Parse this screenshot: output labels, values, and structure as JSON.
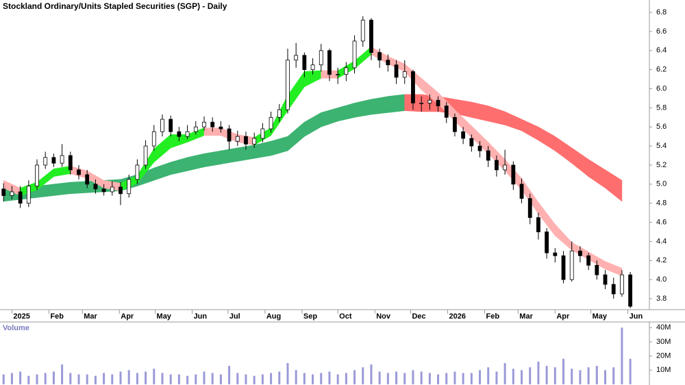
{
  "chart_data": {
    "type": "candlestick",
    "title": "Stockland Ordinary/Units Stapled Securities (SGP) - Daily",
    "x": [
      -7,
      0,
      7,
      14,
      21,
      28,
      35,
      42,
      49,
      56,
      63,
      70,
      77,
      84,
      91,
      98,
      105,
      112,
      119,
      126,
      133,
      140,
      147,
      154,
      161,
      168,
      175,
      182,
      189,
      196,
      203,
      210,
      217,
      224,
      231,
      238,
      245,
      252,
      259,
      266,
      273,
      280,
      287,
      294,
      301,
      308,
      315,
      322,
      329,
      336,
      343,
      350,
      357,
      364,
      371,
      378,
      385,
      392,
      399,
      406,
      413,
      420,
      427,
      434,
      441,
      448,
      455,
      462,
      469,
      476,
      483,
      490,
      497,
      504,
      511,
      518
    ],
    "open": [
      4.95,
      4.88,
      4.92,
      4.8,
      4.98,
      5.2,
      5.28,
      5.22,
      5.3,
      5.15,
      5.1,
      5.0,
      4.95,
      4.92,
      4.97,
      4.9,
      5.05,
      5.2,
      5.4,
      5.55,
      5.68,
      5.55,
      5.5,
      5.55,
      5.6,
      5.65,
      5.6,
      5.58,
      5.45,
      5.5,
      5.42,
      5.48,
      5.58,
      5.7,
      5.78,
      6.3,
      6.35,
      6.2,
      6.25,
      6.4,
      6.15,
      6.15,
      6.22,
      6.5,
      6.72,
      6.38,
      6.3,
      6.25,
      6.12,
      6.18,
      5.85,
      5.85,
      5.88,
      5.82,
      5.7,
      5.55,
      5.48,
      5.4,
      5.35,
      5.25,
      5.15,
      5.2,
      5.0,
      4.85,
      4.65,
      4.5,
      4.28,
      4.25,
      4.0,
      4.3,
      4.25,
      4.15,
      4.05,
      3.95,
      3.85,
      4.05
    ],
    "high": [
      5.01,
      4.98,
      4.98,
      5.04,
      5.26,
      5.34,
      5.32,
      5.42,
      5.34,
      5.2,
      5.15,
      5.05,
      5.0,
      5.03,
      5.02,
      5.1,
      5.26,
      5.46,
      5.62,
      5.73,
      5.72,
      5.6,
      5.62,
      5.66,
      5.71,
      5.7,
      5.66,
      5.62,
      5.56,
      5.55,
      5.54,
      5.64,
      5.76,
      5.84,
      6.42,
      6.48,
      6.38,
      6.32,
      6.47,
      6.42,
      6.22,
      6.28,
      6.56,
      6.76,
      6.74,
      6.42,
      6.36,
      6.3,
      6.3,
      6.2,
      5.92,
      5.94,
      5.92,
      5.86,
      5.74,
      5.6,
      5.52,
      5.45,
      5.4,
      5.3,
      5.36,
      5.24,
      5.06,
      4.9,
      4.7,
      4.54,
      4.33,
      4.3,
      4.4,
      4.35,
      4.28,
      4.2,
      4.1,
      4.02,
      4.1,
      4.08
    ],
    "low": [
      4.82,
      4.84,
      4.75,
      4.76,
      4.94,
      5.16,
      5.18,
      5.18,
      5.1,
      5.05,
      4.96,
      4.9,
      4.88,
      4.88,
      4.78,
      4.86,
      5.0,
      5.16,
      5.35,
      5.5,
      5.5,
      5.45,
      5.47,
      5.52,
      5.56,
      5.55,
      5.54,
      5.36,
      5.4,
      5.36,
      5.38,
      5.44,
      5.54,
      5.65,
      5.74,
      6.22,
      6.12,
      6.15,
      6.18,
      6.08,
      6.05,
      6.08,
      6.16,
      6.44,
      6.3,
      6.22,
      6.18,
      6.05,
      6.05,
      5.78,
      5.76,
      5.78,
      5.76,
      5.64,
      5.5,
      5.42,
      5.34,
      5.28,
      5.18,
      5.08,
      5.1,
      4.94,
      4.8,
      4.58,
      4.42,
      4.22,
      4.18,
      3.96,
      3.98,
      4.18,
      4.1,
      4.0,
      3.9,
      3.8,
      3.82,
      3.7
    ],
    "close": [
      4.88,
      4.92,
      4.8,
      4.98,
      5.2,
      5.28,
      5.22,
      5.3,
      5.15,
      5.1,
      5.0,
      4.95,
      4.92,
      4.97,
      4.9,
      5.05,
      5.2,
      5.4,
      5.55,
      5.68,
      5.55,
      5.5,
      5.55,
      5.6,
      5.65,
      5.6,
      5.58,
      5.45,
      5.5,
      5.42,
      5.48,
      5.58,
      5.7,
      5.78,
      6.3,
      6.35,
      6.2,
      6.25,
      6.4,
      6.15,
      6.15,
      6.22,
      6.5,
      6.72,
      6.38,
      6.3,
      6.25,
      6.12,
      6.18,
      5.85,
      5.85,
      5.88,
      5.82,
      5.7,
      5.55,
      5.48,
      5.4,
      5.35,
      5.25,
      5.15,
      5.2,
      5.0,
      4.85,
      4.65,
      4.5,
      4.28,
      4.25,
      4.0,
      4.3,
      4.25,
      4.15,
      4.05,
      3.95,
      3.85,
      4.05,
      3.72
    ],
    "up_color": "#ffffff",
    "down_color": "#000000",
    "xlim": [
      -10,
      534
    ],
    "xticks": [
      {
        "value": 0,
        "label": "2025"
      },
      {
        "value": 31,
        "label": "Feb"
      },
      {
        "value": 59,
        "label": "Mar"
      },
      {
        "value": 90,
        "label": "Apr"
      },
      {
        "value": 120,
        "label": "May"
      },
      {
        "value": 151,
        "label": "Jun"
      },
      {
        "value": 181,
        "label": "Jul"
      },
      {
        "value": 212,
        "label": "Aug"
      },
      {
        "value": 243,
        "label": "Sep"
      },
      {
        "value": 273,
        "label": "Oct"
      },
      {
        "value": 304,
        "label": "Nov"
      },
      {
        "value": 334,
        "label": "Dec"
      },
      {
        "value": 365,
        "label": "2026"
      },
      {
        "value": 396,
        "label": "Feb"
      },
      {
        "value": 424,
        "label": "Mar"
      },
      {
        "value": 455,
        "label": "Apr"
      },
      {
        "value": 485,
        "label": "May"
      },
      {
        "value": 516,
        "label": "Jun"
      }
    ],
    "ylim": [
      3.685,
      6.93
    ],
    "yticks": [
      3.8,
      {
        "value": 4,
        "label": "4.0"
      },
      4.2,
      4.4,
      4.6,
      4.8,
      {
        "value": 5,
        "label": "5.0"
      },
      5.2,
      5.4,
      5.6,
      5.8,
      {
        "value": 6,
        "label": "6.0"
      },
      6.2,
      6.4,
      6.6,
      6.8
    ],
    "bands": [
      {
        "x": [
          -7,
          7,
          21,
          35,
          49,
          63,
          77,
          91,
          105,
          119,
          133,
          147,
          161,
          175,
          189,
          203,
          217,
          231,
          245,
          259,
          273,
          287,
          301,
          315,
          329,
          343,
          357,
          371,
          385,
          399,
          413,
          427,
          441,
          455,
          469,
          483,
          497,
          511
        ],
        "upper": [
          4.94,
          4.96,
          4.98,
          5.0,
          5.02,
          5.03,
          5.04,
          5.05,
          5.1,
          5.17,
          5.23,
          5.28,
          5.32,
          5.35,
          5.38,
          5.41,
          5.45,
          5.5,
          5.65,
          5.75,
          5.8,
          5.85,
          5.89,
          5.92,
          5.94,
          5.94,
          5.92,
          5.89,
          5.86,
          5.82,
          5.76,
          5.68,
          5.6,
          5.5,
          5.38,
          5.26,
          5.15,
          5.04
        ],
        "lower": [
          4.82,
          4.84,
          4.86,
          4.88,
          4.9,
          4.91,
          4.92,
          4.93,
          4.98,
          5.04,
          5.1,
          5.14,
          5.18,
          5.21,
          5.24,
          5.27,
          5.3,
          5.35,
          5.5,
          5.6,
          5.66,
          5.7,
          5.73,
          5.75,
          5.77,
          5.76,
          5.76,
          5.74,
          5.7,
          5.66,
          5.62,
          5.56,
          5.46,
          5.35,
          5.22,
          5.08,
          4.96,
          4.82
        ],
        "rising_color": "#3cb371",
        "falling_color": "#ff6e6e"
      },
      {
        "x": [
          -7,
          7,
          21,
          35,
          49,
          63,
          77,
          91,
          105,
          119,
          133,
          147,
          161,
          175,
          189,
          203,
          217,
          231,
          245,
          259,
          273,
          287,
          301,
          315,
          329,
          343,
          357,
          371,
          385,
          399,
          413,
          427,
          441,
          455,
          469,
          483,
          497,
          511
        ],
        "upper": [
          5.04,
          4.96,
          5.02,
          5.16,
          5.19,
          5.14,
          5.04,
          5.01,
          5.09,
          5.37,
          5.52,
          5.52,
          5.59,
          5.59,
          5.52,
          5.49,
          5.59,
          5.93,
          6.18,
          6.19,
          6.19,
          6.29,
          6.44,
          6.34,
          6.26,
          6.11,
          5.96,
          5.78,
          5.61,
          5.44,
          5.26,
          5.06,
          4.81,
          4.58,
          4.39,
          4.29,
          4.19,
          4.12
        ],
        "lower": [
          4.96,
          4.88,
          4.94,
          5.08,
          5.11,
          5.06,
          4.96,
          4.93,
          5.01,
          5.23,
          5.38,
          5.44,
          5.51,
          5.51,
          5.44,
          5.41,
          5.51,
          5.77,
          6.02,
          6.11,
          6.11,
          6.21,
          6.36,
          6.26,
          6.18,
          5.99,
          5.84,
          5.66,
          5.49,
          5.32,
          5.14,
          4.94,
          4.69,
          4.46,
          4.31,
          4.21,
          4.11,
          4.04
        ],
        "rising_color": "#22ee22",
        "falling_color": "#ffb0b0"
      }
    ],
    "volume": {
      "label": "Volume",
      "color": "#9a9ad8",
      "values": [
        7,
        8,
        9,
        6,
        7,
        8,
        9,
        14,
        8,
        7,
        7,
        6,
        8,
        7,
        9,
        10,
        8,
        9,
        11,
        8,
        7,
        7,
        6,
        7,
        9,
        8,
        7,
        13,
        8,
        7,
        6,
        7,
        8,
        9,
        15,
        10,
        8,
        7,
        8,
        9,
        7,
        8,
        10,
        12,
        14,
        9,
        8,
        9,
        8,
        10,
        9,
        8,
        7,
        8,
        9,
        8,
        8,
        10,
        12,
        9,
        15,
        11,
        10,
        12,
        16,
        13,
        12,
        18,
        11,
        10,
        12,
        13,
        10,
        12,
        40,
        18
      ],
      "ylim": [
        0,
        44
      ],
      "yticks": [
        {
          "value": 10,
          "label": "10M"
        },
        {
          "value": 20,
          "label": "20M"
        },
        {
          "value": 30,
          "label": "30M"
        },
        {
          "value": 40,
          "label": "40M"
        }
      ]
    }
  }
}
